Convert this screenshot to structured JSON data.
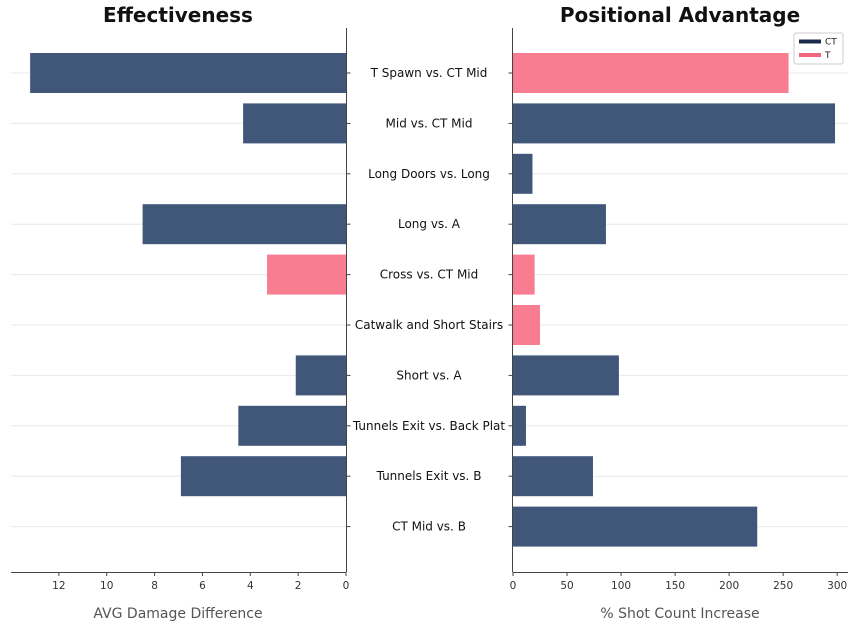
{
  "colors": {
    "CT": "#41577a",
    "T": "#f87d91",
    "legend_CT": "#172b4a",
    "legend_T": "#f0677f"
  },
  "chart_data": [
    {
      "type": "bar",
      "orientation": "horizontal",
      "title": "Effectiveness",
      "xlabel": "AVG Damage Difference",
      "xlim": [
        0,
        14
      ],
      "x_reversed": true,
      "xticks": [
        12,
        10,
        8,
        6,
        4,
        2,
        0
      ],
      "grid": true,
      "categories": [
        "T Spawn vs. CT Mid",
        "Mid vs. CT Mid",
        "Long Doors vs. Long",
        "Long vs. A",
        "Cross vs. CT Mid",
        "Catwalk and Short Stairs",
        "Short vs. A",
        "Tunnels Exit vs. Back Plat",
        "Tunnels Exit vs. B",
        "CT Mid vs. B"
      ],
      "values": [
        13.2,
        4.3,
        0,
        8.5,
        3.3,
        0,
        2.1,
        4.5,
        6.9,
        0
      ],
      "side": [
        "CT",
        "CT",
        "CT",
        "CT",
        "T",
        "CT",
        "CT",
        "CT",
        "CT",
        "CT"
      ]
    },
    {
      "type": "bar",
      "orientation": "horizontal",
      "title": "Positional Advantage",
      "xlabel": "% Shot Count Increase",
      "xlim": [
        0,
        310
      ],
      "xticks": [
        0,
        50,
        100,
        150,
        200,
        250,
        300
      ],
      "grid": true,
      "legend_position": "top-right",
      "legend": [
        "CT",
        "T"
      ],
      "categories": [
        "T Spawn vs. CT Mid",
        "Mid vs. CT Mid",
        "Long Doors vs. Long",
        "Long vs. A",
        "Cross vs. CT Mid",
        "Catwalk and Short Stairs",
        "Short vs. A",
        "Tunnels Exit vs. Back Plat",
        "Tunnels Exit vs. B",
        "CT Mid vs. B"
      ],
      "values": [
        255,
        298,
        18,
        86,
        20,
        25,
        98,
        12,
        74,
        226
      ],
      "side": [
        "T",
        "CT",
        "CT",
        "CT",
        "T",
        "T",
        "CT",
        "CT",
        "CT",
        "CT"
      ]
    }
  ]
}
